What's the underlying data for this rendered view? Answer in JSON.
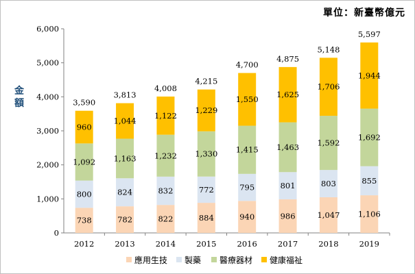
{
  "unit_label": "單位：新臺幣億元",
  "chart_data": {
    "type": "bar",
    "stacked": true,
    "title": "",
    "xlabel": "",
    "ylabel": "金額",
    "ylim": [
      0,
      6000
    ],
    "yticks": [
      "0",
      "1,000",
      "2,000",
      "3,000",
      "4,000",
      "5,000",
      "6,000"
    ],
    "categories": [
      "2012",
      "2013",
      "2014",
      "2015",
      "2016",
      "2017",
      "2018",
      "2019"
    ],
    "series": [
      {
        "name": "應用生技",
        "color": "#fbd5b5",
        "values": [
          738,
          782,
          822,
          884,
          940,
          986,
          1047,
          1106
        ],
        "labels": [
          "738",
          "782",
          "822",
          "884",
          "940",
          "986",
          "1,047",
          "1,106"
        ]
      },
      {
        "name": "製藥",
        "color": "#dbe5f1",
        "values": [
          800,
          824,
          832,
          772,
          795,
          801,
          803,
          855
        ],
        "labels": [
          "800",
          "824",
          "832",
          "772",
          "795",
          "801",
          "803",
          "855"
        ]
      },
      {
        "name": "醫療器材",
        "color": "#c3d69b",
        "values": [
          1092,
          1163,
          1232,
          1330,
          1415,
          1463,
          1592,
          1692
        ],
        "labels": [
          "1,092",
          "1,163",
          "1,232",
          "1,330",
          "1,415",
          "1,463",
          "1,592",
          "1,692"
        ]
      },
      {
        "name": "健康福祉",
        "color": "#ffc000",
        "values": [
          960,
          1044,
          1122,
          1229,
          1550,
          1625,
          1706,
          1944
        ],
        "labels": [
          "960",
          "1,044",
          "1,122",
          "1,229",
          "1,550",
          "1,625",
          "1,706",
          "1,944"
        ]
      }
    ],
    "totals": [
      "3,590",
      "3,813",
      "4,008",
      "4,215",
      "4,700",
      "4,875",
      "5,148",
      "5,597"
    ],
    "grid": false,
    "legend": "bottom"
  }
}
